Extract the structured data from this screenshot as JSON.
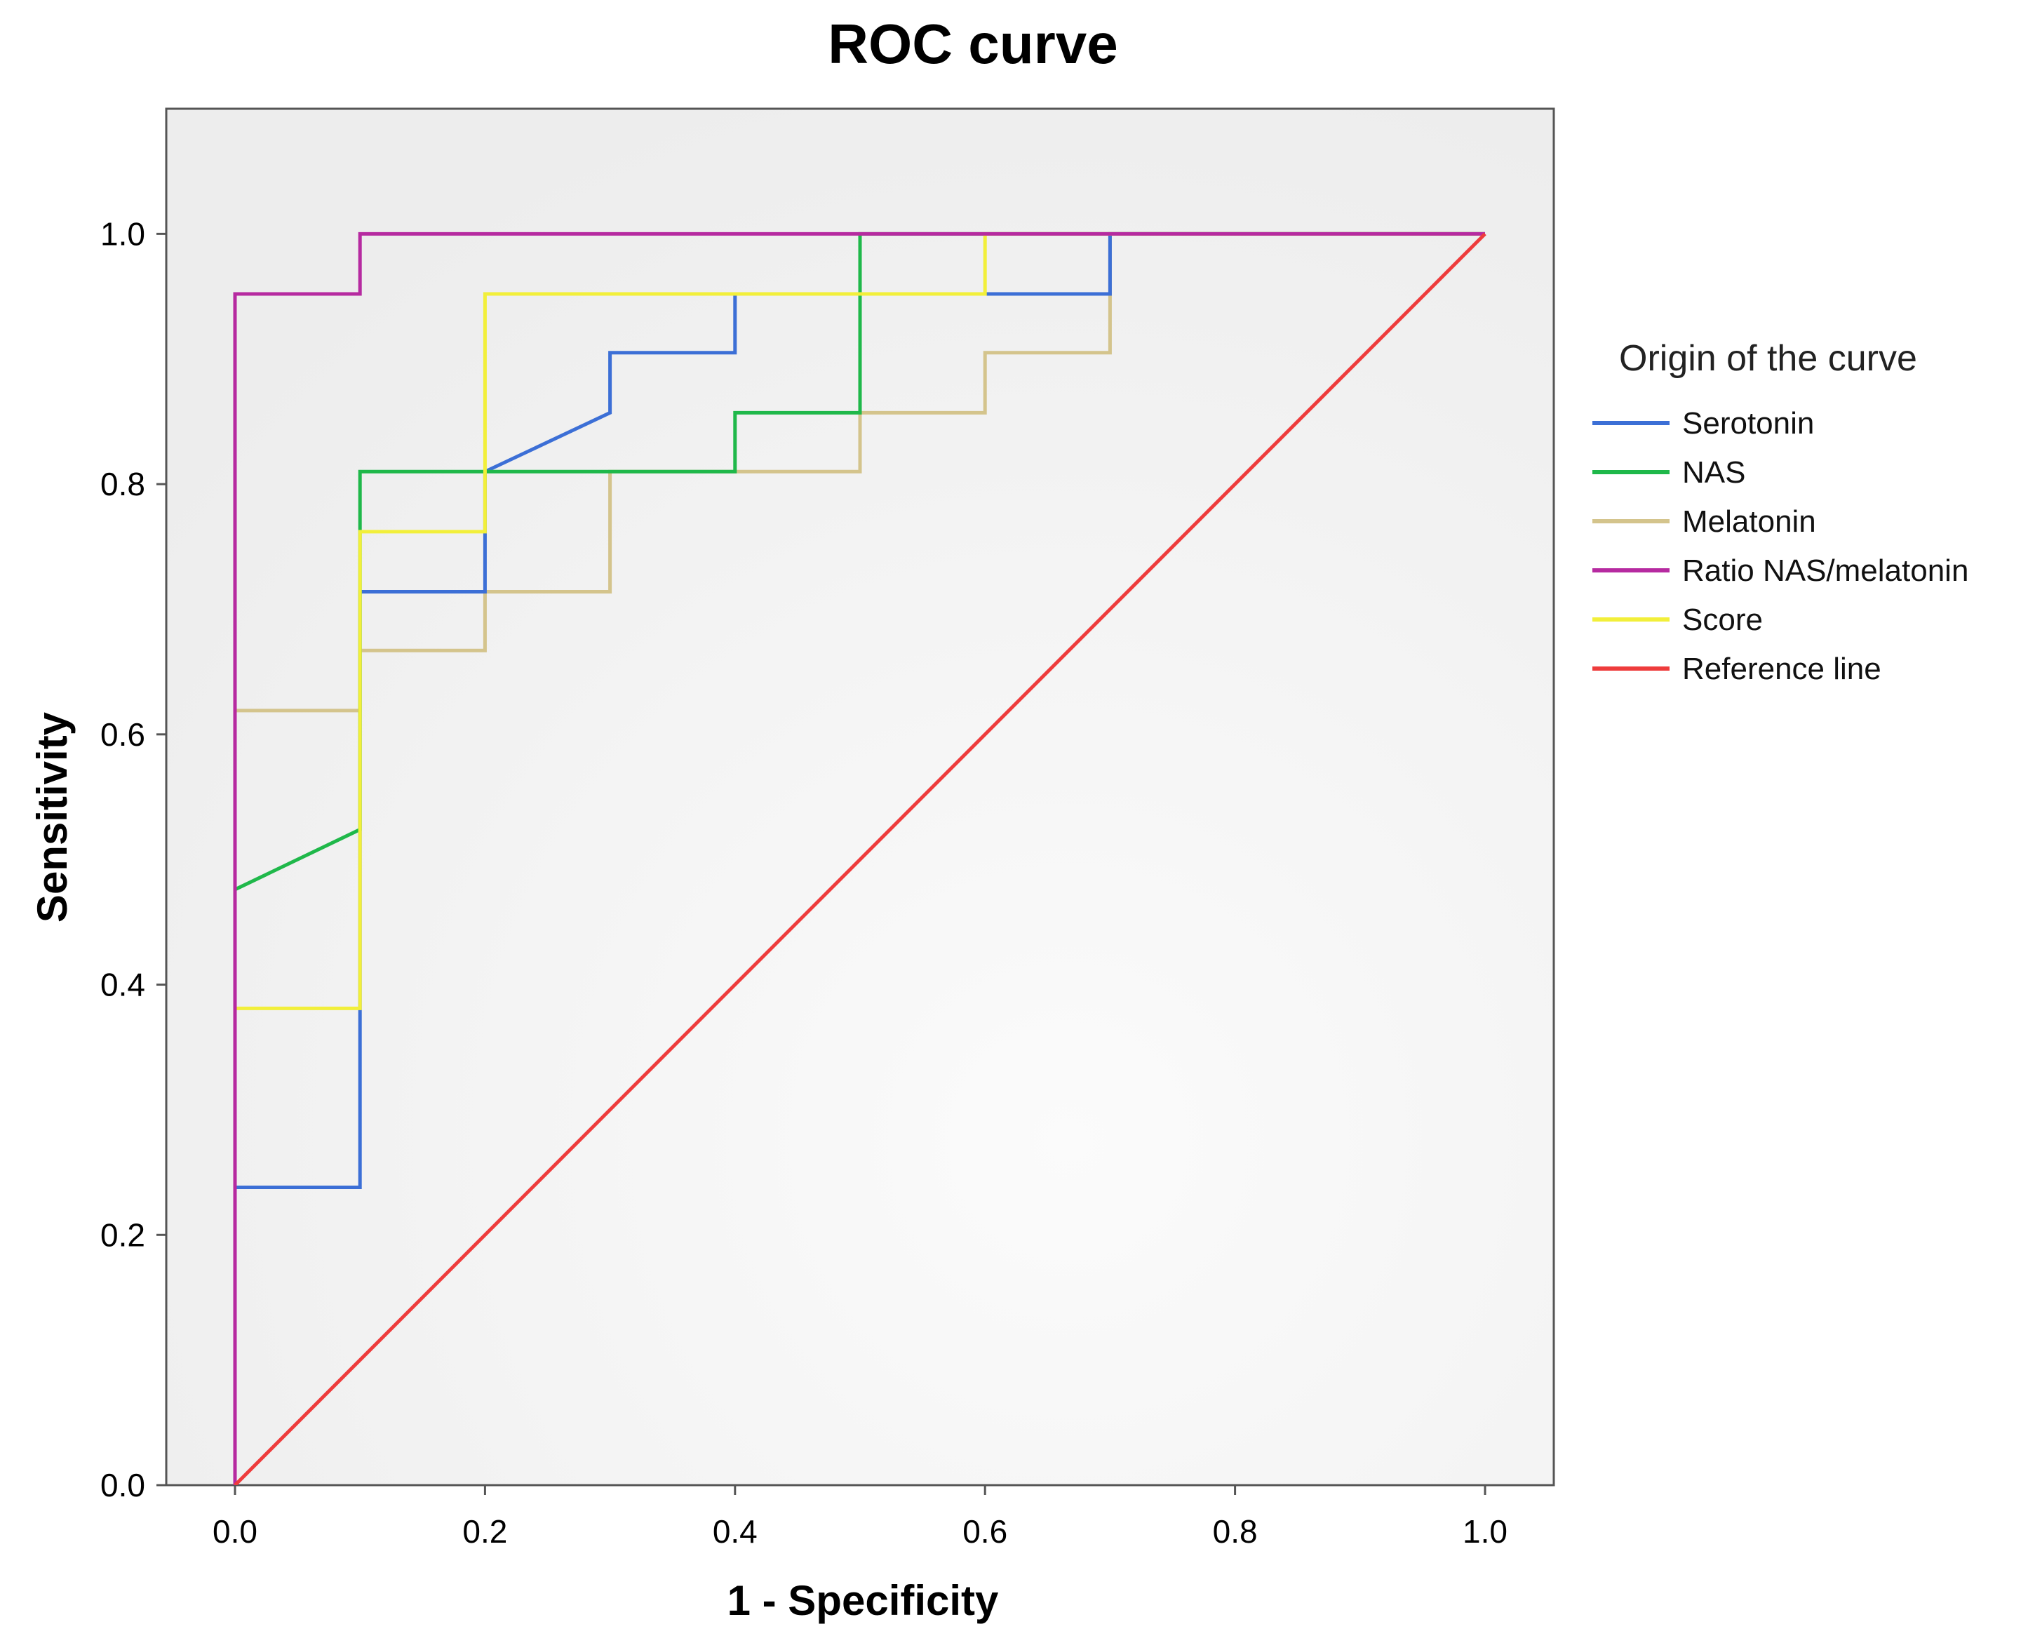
{
  "chart_data": {
    "type": "line",
    "title": "ROC curve",
    "xlabel": "1 - Specificity",
    "ylabel": "Sensitivity",
    "xlim": [
      -0.055,
      1.055
    ],
    "ylim": [
      0.0,
      1.1
    ],
    "xticks": [
      0.0,
      0.2,
      0.4,
      0.6,
      0.8,
      1.0
    ],
    "yticks": [
      0.0,
      0.2,
      0.4,
      0.6,
      0.8,
      1.0
    ],
    "xtick_labels": [
      "0.0",
      "0.2",
      "0.4",
      "0.6",
      "0.8",
      "1.0"
    ],
    "ytick_labels": [
      "0.0",
      "0.2",
      "0.4",
      "0.6",
      "0.8",
      "1.0"
    ],
    "grid": false,
    "legend_title": "Origin of the curve",
    "legend_position": "right",
    "series": [
      {
        "name": "Serotonin",
        "color": "#3c6fd6",
        "points": [
          [
            0,
            0
          ],
          [
            0,
            0.238
          ],
          [
            0.1,
            0.238
          ],
          [
            0.1,
            0.714
          ],
          [
            0.2,
            0.714
          ],
          [
            0.2,
            0.81
          ],
          [
            0.3,
            0.857
          ],
          [
            0.3,
            0.905
          ],
          [
            0.4,
            0.905
          ],
          [
            0.4,
            0.952
          ],
          [
            0.6,
            0.952
          ],
          [
            0.7,
            0.952
          ],
          [
            0.7,
            1.0
          ],
          [
            1.0,
            1.0
          ]
        ]
      },
      {
        "name": "NAS",
        "color": "#1fb84a",
        "points": [
          [
            0,
            0
          ],
          [
            0,
            0.476
          ],
          [
            0.1,
            0.524
          ],
          [
            0.1,
            0.81
          ],
          [
            0.4,
            0.81
          ],
          [
            0.4,
            0.857
          ],
          [
            0.5,
            0.857
          ],
          [
            0.5,
            1.0
          ],
          [
            1.0,
            1.0
          ]
        ]
      },
      {
        "name": "Melatonin",
        "color": "#d4c48c",
        "points": [
          [
            0,
            0
          ],
          [
            0,
            0.619
          ],
          [
            0.1,
            0.619
          ],
          [
            0.1,
            0.667
          ],
          [
            0.2,
            0.667
          ],
          [
            0.2,
            0.714
          ],
          [
            0.3,
            0.714
          ],
          [
            0.3,
            0.81
          ],
          [
            0.5,
            0.81
          ],
          [
            0.5,
            0.857
          ],
          [
            0.6,
            0.857
          ],
          [
            0.6,
            0.905
          ],
          [
            0.7,
            0.905
          ],
          [
            0.7,
            1.0
          ],
          [
            1.0,
            1.0
          ]
        ]
      },
      {
        "name": "Ratio NAS/melatonin",
        "color": "#b62aa0",
        "points": [
          [
            0,
            0
          ],
          [
            0,
            0.952
          ],
          [
            0.1,
            0.952
          ],
          [
            0.1,
            1.0
          ],
          [
            1.0,
            1.0
          ]
        ]
      },
      {
        "name": "Score",
        "color": "#f2ef3a",
        "points": [
          [
            0,
            0
          ],
          [
            0,
            0.381
          ],
          [
            0.1,
            0.381
          ],
          [
            0.1,
            0.762
          ],
          [
            0.2,
            0.762
          ],
          [
            0.2,
            0.952
          ],
          [
            0.6,
            0.952
          ],
          [
            0.6,
            1.0
          ],
          [
            1.0,
            1.0
          ]
        ]
      },
      {
        "name": "Reference line",
        "color": "#ee3c3c",
        "points": [
          [
            0,
            0
          ],
          [
            1.0,
            1.0
          ]
        ]
      }
    ]
  }
}
